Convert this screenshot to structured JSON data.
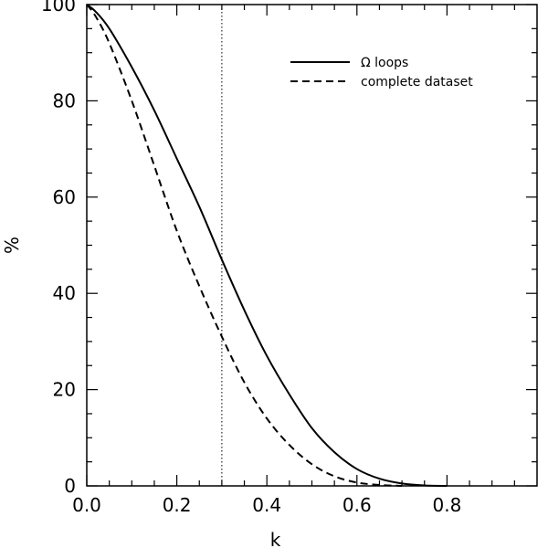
{
  "chart_data": {
    "type": "line",
    "xlabel": "k",
    "ylabel": "%",
    "xlim": [
      0.0,
      1.0
    ],
    "ylim": [
      0,
      100
    ],
    "x_ticks": [
      0.0,
      0.2,
      0.4,
      0.6,
      0.8
    ],
    "x_tick_labels": [
      "0.0",
      "0.2",
      "0.4",
      "0.6",
      "0.8"
    ],
    "y_ticks": [
      0,
      20,
      40,
      60,
      80,
      100
    ],
    "y_tick_labels": [
      "0",
      "20",
      "40",
      "60",
      "80",
      "100"
    ],
    "grid": false,
    "legend_position": "top-right",
    "reference_lines": [
      {
        "axis": "x",
        "value": 0.3,
        "style": "dotted"
      }
    ],
    "series": [
      {
        "name": "Ω loops",
        "style": "solid",
        "x": [
          0.0,
          0.02,
          0.05,
          0.1,
          0.15,
          0.2,
          0.25,
          0.3,
          0.35,
          0.4,
          0.45,
          0.5,
          0.55,
          0.6,
          0.65,
          0.7,
          0.75,
          0.8
        ],
        "y": [
          100,
          98.5,
          95,
          87,
          78,
          68,
          58,
          47,
          36.5,
          27,
          19,
          12,
          7,
          3.5,
          1.5,
          0.5,
          0.1,
          0
        ]
      },
      {
        "name": "complete dataset",
        "style": "dashed",
        "x": [
          0.0,
          0.02,
          0.05,
          0.1,
          0.15,
          0.2,
          0.25,
          0.3,
          0.35,
          0.4,
          0.45,
          0.5,
          0.55,
          0.6,
          0.65,
          0.7
        ],
        "y": [
          100,
          97.5,
          92,
          80,
          66.5,
          53,
          41.5,
          31,
          21.5,
          14,
          8.5,
          4.5,
          2,
          0.7,
          0.2,
          0
        ]
      }
    ]
  }
}
